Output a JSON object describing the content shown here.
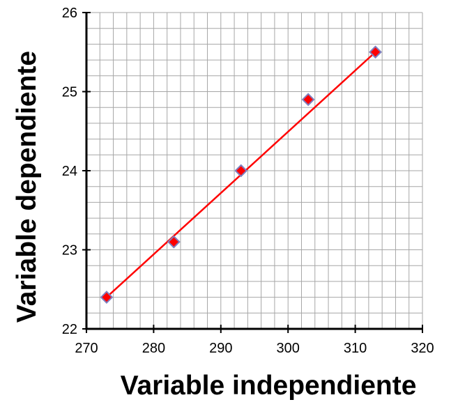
{
  "colors": {
    "background": "#ffffff",
    "grid": "#a6a6a6",
    "axis": "#000000",
    "fit_line": "#ff0000",
    "marker_fill": "#ff0000",
    "marker_edge": "#7f7fbf"
  },
  "chart_data": {
    "type": "scatter",
    "title": "",
    "xlabel": "Variable independiente",
    "ylabel": "Variable dependiente",
    "xlim": [
      270,
      320
    ],
    "ylim": [
      22,
      26
    ],
    "x_major_ticks": [
      270,
      280,
      290,
      300,
      310,
      320
    ],
    "y_major_ticks": [
      22,
      23,
      24,
      25,
      26
    ],
    "x_tick_labels": [
      "270",
      "280",
      "290",
      "300",
      "310",
      "320"
    ],
    "y_tick_labels": [
      "22",
      "23",
      "24",
      "25",
      "26"
    ],
    "x_minor_step": 2,
    "y_minor_step": 0.2,
    "grid": true,
    "legend": "none",
    "series": [
      {
        "marker": "diamond",
        "x": [
          273,
          283,
          293,
          303,
          313
        ],
        "y": [
          22.4,
          23.1,
          24.0,
          24.9,
          25.5
        ]
      }
    ],
    "trendline": {
      "type": "linear",
      "x": [
        273,
        313
      ],
      "y": [
        22.4,
        25.5
      ]
    }
  }
}
